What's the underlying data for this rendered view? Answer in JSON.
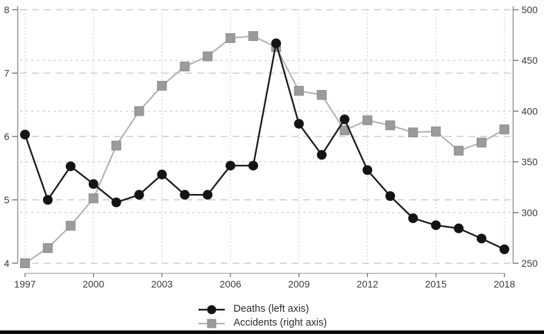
{
  "chart_data": {
    "type": "line",
    "title": "",
    "x": [
      1997,
      1998,
      1999,
      2000,
      2001,
      2002,
      2003,
      2004,
      2005,
      2006,
      2007,
      2008,
      2009,
      2010,
      2011,
      2012,
      2013,
      2014,
      2015,
      2016,
      2017,
      2018
    ],
    "x_tick_labels": [
      "1997",
      "2000",
      "2003",
      "2006",
      "2009",
      "2012",
      "2015",
      "2018"
    ],
    "x_tick_years": [
      1997,
      2000,
      2003,
      2006,
      2009,
      2012,
      2015,
      2018
    ],
    "left_axis": {
      "min": 4,
      "max": 8,
      "ticks": [
        8,
        7,
        6,
        5,
        4
      ],
      "tick_labels": [
        "8",
        "7",
        "6",
        "5",
        "4"
      ]
    },
    "right_axis": {
      "min": 250,
      "max": 500,
      "ticks": [
        500,
        450,
        400,
        350,
        300,
        250
      ],
      "tick_labels": [
        "500",
        "450",
        "400",
        "350",
        "300",
        "250"
      ]
    },
    "grid": true,
    "legend_position": "bottom-center",
    "series": [
      {
        "name": "Deaths (left axis)",
        "axis": "left",
        "marker": "circle",
        "color": "#141414",
        "line_color": "#1c1c1c",
        "values": [
          6.03,
          5.0,
          5.53,
          5.25,
          4.96,
          5.08,
          5.4,
          5.08,
          5.08,
          5.54,
          5.54,
          7.47,
          6.2,
          5.71,
          6.27,
          5.47,
          5.06,
          4.71,
          4.6,
          4.55,
          4.39,
          4.22
        ]
      },
      {
        "name": "Accidents (right axis)",
        "axis": "right",
        "marker": "square",
        "color": "#9b9b9b",
        "line_color": "#b3b3b3",
        "values": [
          250,
          265,
          287,
          314,
          366,
          400,
          425,
          444,
          454,
          472,
          474,
          463,
          420,
          416,
          381,
          391,
          386,
          379,
          380,
          361,
          369,
          382
        ]
      }
    ]
  },
  "legend": {
    "items": [
      {
        "label": "Deaths (left axis)",
        "marker": "circle-marker",
        "color": "#141414"
      },
      {
        "label": "Accidents (right axis)",
        "marker": "square-marker",
        "color": "#9b9b9b"
      }
    ]
  },
  "colors": {
    "grid_left": "#c2c2c2",
    "grid_right": "#c8c8c8",
    "grid_vertical": "#c8c8c8",
    "spine": "#8f8f8f",
    "x_axis": "#a8a8a8",
    "tick": "#6f6f6f",
    "tick_label": "#3a3a3a",
    "bottom_border": "#000000"
  }
}
